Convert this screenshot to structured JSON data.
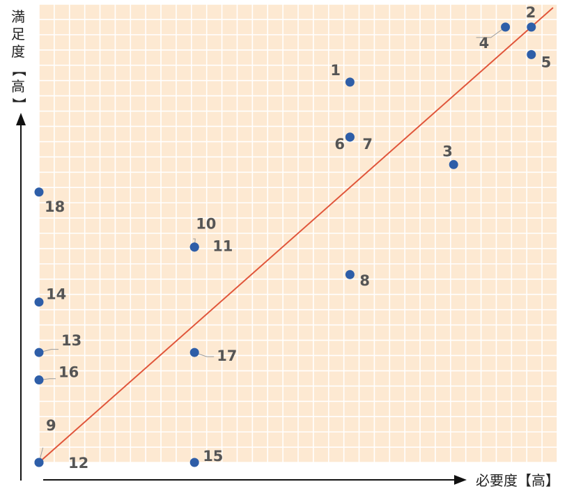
{
  "chart_data": {
    "type": "scatter",
    "title": "",
    "xlabel": "必要度【高】",
    "ylabel": [
      "満",
      "足",
      "度",
      "【",
      "高",
      "】"
    ],
    "xlim": [
      0,
      100
    ],
    "ylim": [
      0,
      100
    ],
    "grid": true,
    "series": [
      {
        "points": [
          {
            "label": "1",
            "x": 60,
            "y": 83
          },
          {
            "label": "2",
            "x": 95,
            "y": 95
          },
          {
            "label": "3",
            "x": 80,
            "y": 65
          },
          {
            "label": "4",
            "x": 90,
            "y": 95
          },
          {
            "label": "5",
            "x": 95,
            "y": 89
          },
          {
            "label": "6",
            "x": 60,
            "y": 71
          },
          {
            "label": "7",
            "x": 60,
            "y": 71
          },
          {
            "label": "8",
            "x": 60,
            "y": 41
          },
          {
            "label": "9",
            "x": 0,
            "y": 0
          },
          {
            "label": "10",
            "x": 30,
            "y": 47
          },
          {
            "label": "11",
            "x": 30,
            "y": 47
          },
          {
            "label": "12",
            "x": 0,
            "y": 0
          },
          {
            "label": "13",
            "x": 0,
            "y": 24
          },
          {
            "label": "14",
            "x": 0,
            "y": 35
          },
          {
            "label": "15",
            "x": 30,
            "y": 0
          },
          {
            "label": "16",
            "x": 0,
            "y": 18
          },
          {
            "label": "17",
            "x": 30,
            "y": 24
          },
          {
            "label": "18",
            "x": 0,
            "y": 59
          }
        ]
      }
    ],
    "reference_line": {
      "from": [
        0,
        0
      ],
      "to": [
        100,
        100
      ]
    },
    "colors": {
      "background": "#fde9d2",
      "grid": "#ffffff",
      "point": "#2e5ea8",
      "line": "#e0553a",
      "axis": "#111111",
      "label": "#555555"
    }
  }
}
